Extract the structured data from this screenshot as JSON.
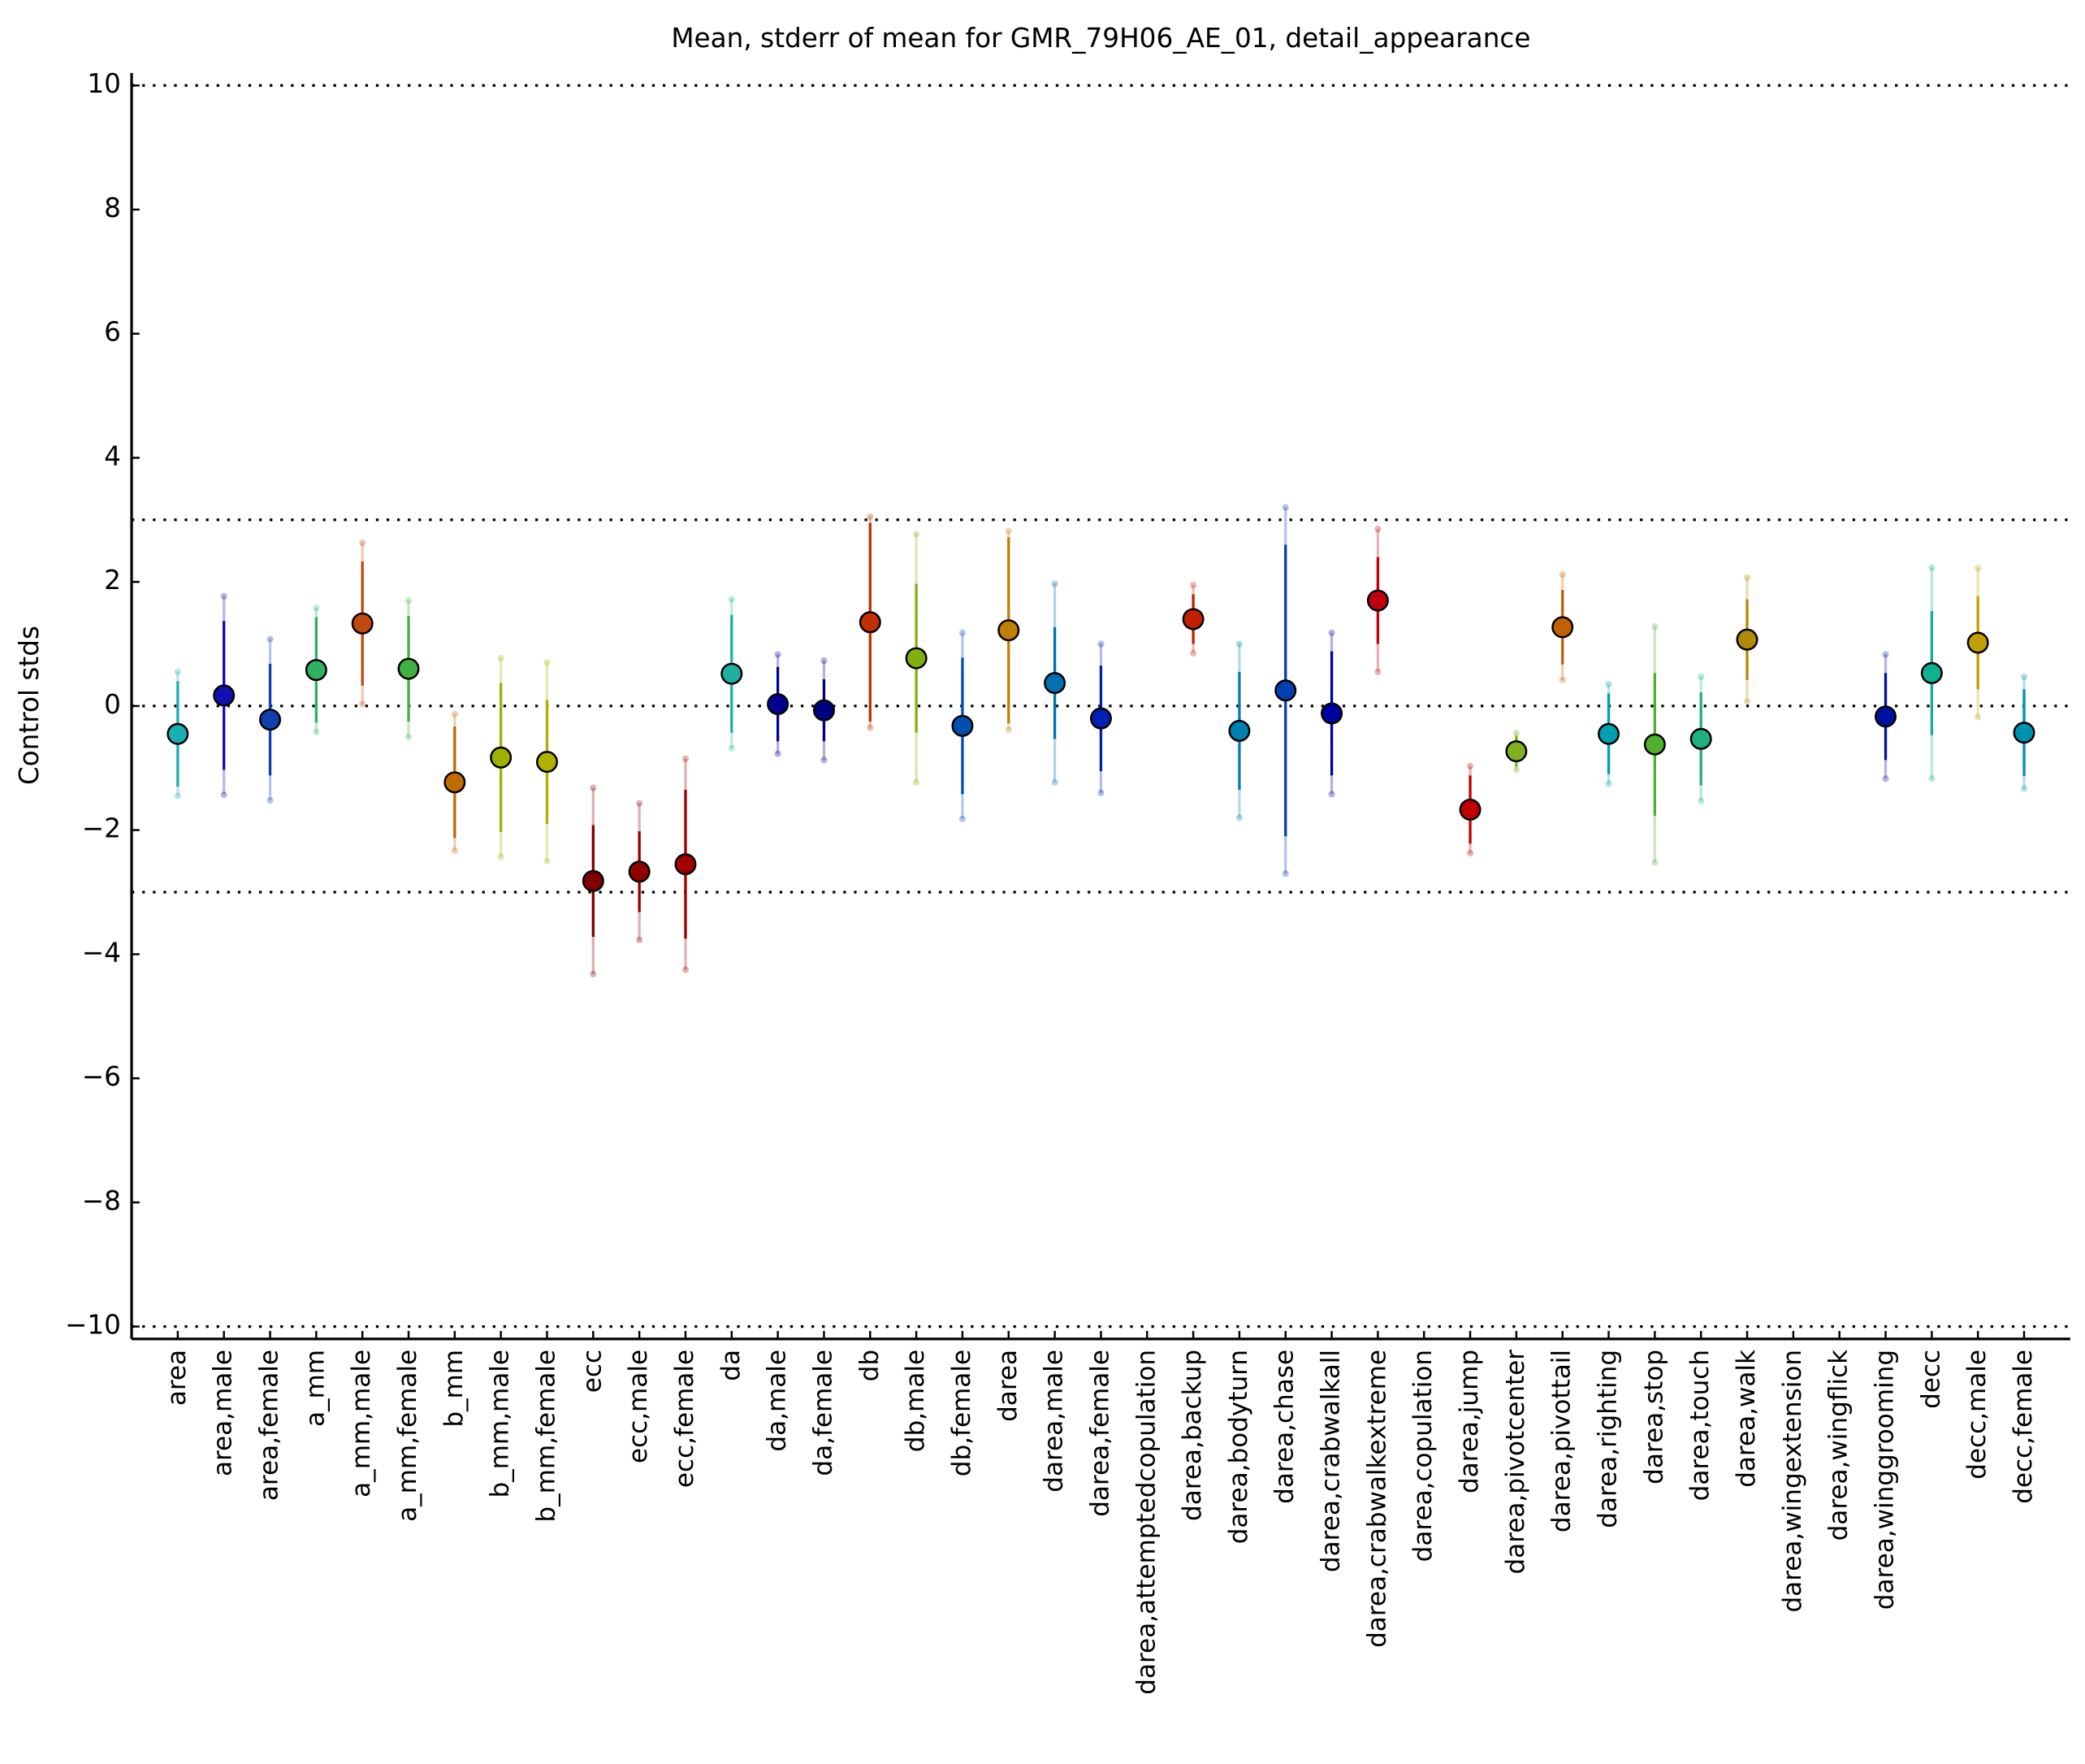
{
  "chart_data": {
    "type": "errorbar",
    "title": "Mean, stderr of mean for GMR_79H06_AE_01, detail_appearance",
    "y_label": "Control stds",
    "categories": [
      "area",
      "area,male",
      "area,female",
      "a_mm",
      "a_mm,male",
      "a_mm,female",
      "b_mm",
      "b_mm,male",
      "b_mm,female",
      "ecc",
      "ecc,male",
      "ecc,female",
      "da",
      "da,male",
      "da,female",
      "db",
      "db,male",
      "db,female",
      "darea",
      "darea,male",
      "darea,female",
      "darea,attemptedcopulation",
      "darea,backup",
      "darea,bodyturn",
      "darea,chase",
      "darea,crabwalkall",
      "darea,crabwalkextreme",
      "darea,copulation",
      "darea,jump",
      "darea,pivotcenter",
      "darea,pivottail",
      "darea,righting",
      "darea,stop",
      "darea,touch",
      "darea,walk",
      "darea,wingextension",
      "darea,wingflick",
      "darea,winggrooming",
      "decc",
      "decc,male",
      "decc,female"
    ],
    "values": [
      -0.45,
      0.17,
      -0.22,
      0.58,
      1.33,
      0.6,
      -1.23,
      -0.83,
      -0.9,
      -2.82,
      -2.67,
      -2.55,
      0.52,
      0.03,
      -0.07,
      1.35,
      0.77,
      -0.32,
      1.22,
      0.37,
      -0.2,
      null,
      1.4,
      -0.4,
      0.25,
      -0.12,
      1.7,
      null,
      -1.67,
      -0.73,
      1.27,
      -0.45,
      -0.62,
      -0.53,
      1.07,
      null,
      null,
      -0.17,
      0.53,
      1.02,
      -0.43
    ],
    "errors": [
      0.85,
      1.2,
      0.9,
      0.85,
      1.0,
      0.85,
      0.9,
      1.2,
      1.0,
      0.9,
      0.65,
      1.2,
      0.95,
      0.6,
      0.5,
      1.6,
      1.2,
      1.1,
      1.5,
      0.9,
      0.85,
      null,
      0.4,
      0.95,
      2.35,
      1.0,
      0.7,
      null,
      0.55,
      0.25,
      0.6,
      0.65,
      1.15,
      0.75,
      0.65,
      null,
      null,
      0.7,
      1.0,
      0.75,
      0.7
    ],
    "spreads": [
      1.0,
      1.6,
      1.3,
      1.0,
      1.3,
      1.1,
      1.1,
      1.6,
      1.6,
      1.5,
      1.1,
      1.7,
      1.2,
      0.8,
      0.8,
      1.7,
      2.0,
      1.5,
      1.6,
      1.6,
      1.2,
      null,
      0.55,
      1.4,
      2.95,
      1.3,
      1.15,
      null,
      0.7,
      0.3,
      0.85,
      0.8,
      1.9,
      1.0,
      1.0,
      null,
      null,
      1.0,
      1.7,
      1.2,
      0.9
    ],
    "colors": [
      "#18b0b0",
      "#1010b0",
      "#1040b0",
      "#30b060",
      "#c04a10",
      "#40b040",
      "#c06a00",
      "#a0b000",
      "#b0b000",
      "#800000",
      "#900000",
      "#a00000",
      "#20b0a0",
      "#000090",
      "#000080",
      "#c03000",
      "#80b010",
      "#0050b0",
      "#c08000",
      "#0070b0",
      "#0020b0",
      "#888888",
      "#c02000",
      "#0080b0",
      "#0040b0",
      "#0000a0",
      "#c00010",
      "#888888",
      "#c00000",
      "#80b020",
      "#c06000",
      "#00a0b0",
      "#50b030",
      "#20b080",
      "#b08a00",
      "#888888",
      "#888888",
      "#0010a0",
      "#10b090",
      "#c0a000",
      "#0090b0"
    ],
    "ylim": [
      -10.2,
      10.2
    ],
    "yticks": [
      {
        "value": -10,
        "label": "−10"
      },
      {
        "value": -8,
        "label": "−8"
      },
      {
        "value": -6,
        "label": "−6"
      },
      {
        "value": -4,
        "label": "−4"
      },
      {
        "value": -2,
        "label": "−2"
      },
      0,
      2,
      4,
      6,
      8,
      10
    ],
    "reference_lines": [
      10,
      3,
      0,
      -3,
      -10
    ]
  }
}
